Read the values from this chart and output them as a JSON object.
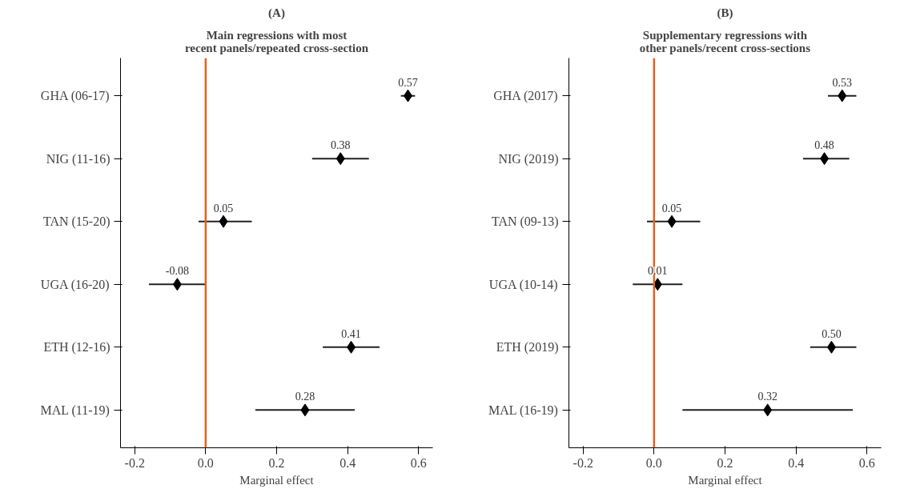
{
  "chart_data": [
    {
      "type": "scatter",
      "orientation": "horizontal",
      "title": "(A)",
      "subtitle": "Main regressions with most\nrecent panels/repeated cross-section",
      "xlabel": "Marginal effect",
      "categories": [
        "GHA (06-17)",
        "NIG (11-16)",
        "TAN (15-20)",
        "UGA (16-20)",
        "ETH (12-16)",
        "MAL (11-19)"
      ],
      "values": [
        0.57,
        0.38,
        0.05,
        -0.08,
        0.41,
        0.28
      ],
      "value_labels": [
        "0.57",
        "0.38",
        "0.05",
        "-0.08",
        "0.41",
        "0.28"
      ],
      "errors": [
        [
          0.55,
          0.59
        ],
        [
          0.3,
          0.46
        ],
        [
          -0.02,
          0.13
        ],
        [
          -0.16,
          0.0
        ],
        [
          0.33,
          0.49
        ],
        [
          0.14,
          0.42
        ]
      ],
      "color": "#000000",
      "marker": "diamond",
      "grid": false,
      "xlim": [
        -0.24,
        0.64
      ],
      "xticks": [
        {
          "value": -0.2,
          "label": "-0.2"
        },
        {
          "value": 0,
          "label": "0.0"
        },
        {
          "value": 0.2,
          "label": "0.2"
        },
        {
          "value": 0.4,
          "label": "0.4"
        },
        {
          "value": 0.6,
          "label": "0.6"
        }
      ],
      "ref_lines": [
        {
          "axis": "x",
          "value": 0,
          "label": null,
          "color": "#e2631a"
        }
      ]
    },
    {
      "type": "scatter",
      "orientation": "horizontal",
      "title": "(B)",
      "subtitle": "Supplementary regressions with\nother panels/recent cross-sections",
      "xlabel": "Marginal effect",
      "categories": [
        "GHA (2017)",
        "NIG (2019)",
        "TAN (09-13)",
        "UGA (10-14)",
        "ETH (2019)",
        "MAL (16-19)"
      ],
      "values": [
        0.53,
        0.48,
        0.05,
        0.01,
        0.5,
        0.32
      ],
      "value_labels": [
        "0.53",
        "0.48",
        "0.05",
        "0.01",
        "0.50",
        "0.32"
      ],
      "errors": [
        [
          0.49,
          0.57
        ],
        [
          0.42,
          0.55
        ],
        [
          -0.02,
          0.13
        ],
        [
          -0.06,
          0.08
        ],
        [
          0.44,
          0.57
        ],
        [
          0.08,
          0.56
        ]
      ],
      "color": "#000000",
      "marker": "diamond",
      "grid": false,
      "xlim": [
        -0.24,
        0.64
      ],
      "xticks": [
        {
          "value": -0.2,
          "label": "-0.2"
        },
        {
          "value": 0,
          "label": "0.0"
        },
        {
          "value": 0.2,
          "label": "0.2"
        },
        {
          "value": 0.4,
          "label": "0.4"
        },
        {
          "value": 0.6,
          "label": "0.6"
        }
      ],
      "ref_lines": [
        {
          "axis": "x",
          "value": 0,
          "label": null,
          "color": "#e2631a"
        }
      ]
    }
  ]
}
